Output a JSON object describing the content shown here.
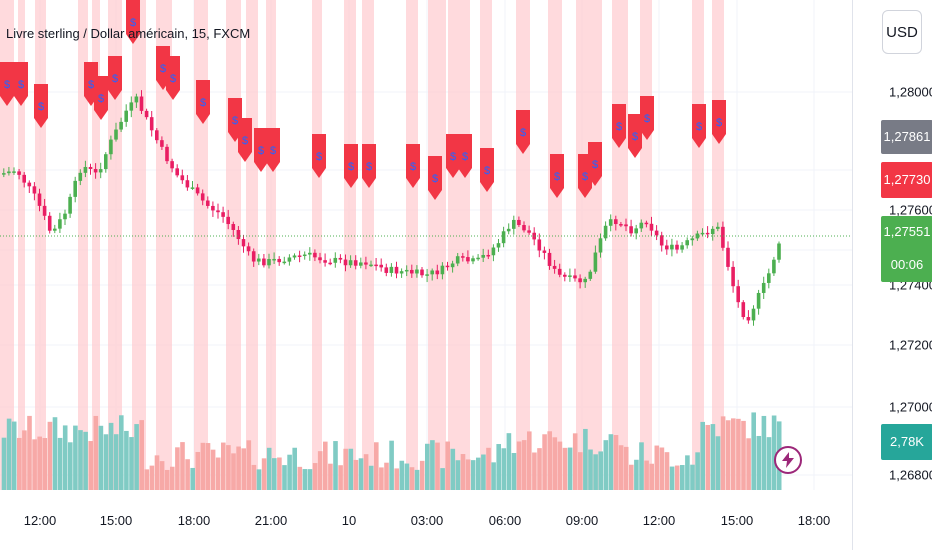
{
  "header": {
    "title": "Livre sterling / Dollar américain, 15, FXCM",
    "currency_button": "USD"
  },
  "y_axis": {
    "ticks": [
      "1,28000",
      "1,27600",
      "1,27400",
      "1,27200",
      "1,27000",
      "1,26800"
    ]
  },
  "x_axis": {
    "ticks": [
      "12:00",
      "15:00",
      "18:00",
      "21:00",
      "10",
      "03:00",
      "06:00",
      "09:00",
      "12:00",
      "15:00",
      "18:00"
    ]
  },
  "price_tags": {
    "high": "1,27861",
    "prev": "1,27730",
    "last": "1,27551",
    "countdown": "00:06",
    "volume": "2,78K"
  },
  "markers": {
    "symbol": "$"
  },
  "colors": {
    "up": "#26a69a",
    "up_candle": "#4caf50",
    "down": "#f23645",
    "down_candle": "#e91e63",
    "highlight_band": "#ffcdd2",
    "gray_tag": "#787b86",
    "volume_up": "#80cbc4",
    "volume_down": "#f7a9a7"
  },
  "icons": {
    "lightning": "lightning-icon"
  }
}
